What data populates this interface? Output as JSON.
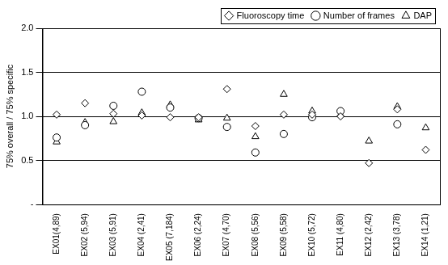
{
  "chart_data": {
    "type": "scatter",
    "y_label": "75% overall / 75% specific",
    "categories": [
      "EX01(4,89)",
      "EX02 (5,94)",
      "EX03 (5,91)",
      "EX04 (2,41)",
      "EX05 (7,184)",
      "EX06 (2,24)",
      "EX07 (4,70)",
      "EX08 (5,56)",
      "EX09 (5,58)",
      "EX10 (5,72)",
      "EX11 (4,80)",
      "EX12 (2,42)",
      "EX13 (3,78)",
      "EX14 (1,21)"
    ],
    "series": [
      {
        "name": "Fluoroscopy time",
        "color": "#000000",
        "marker": "diamond",
        "values": [
          1.02,
          1.15,
          1.03,
          1.01,
          0.99,
          0.99,
          1.31,
          0.89,
          1.02,
          1.02,
          1.0,
          0.47,
          1.08,
          0.62
        ]
      },
      {
        "name": "Number of frames",
        "color": "#000000",
        "marker": "circle",
        "values": [
          0.76,
          0.9,
          1.12,
          1.28,
          1.1,
          0.98,
          0.88,
          0.59,
          0.8,
          0.99,
          1.06,
          null,
          0.91,
          null
        ]
      },
      {
        "name": "DAP",
        "color": "#000000",
        "marker": "triangle",
        "values": [
          0.71,
          0.93,
          0.94,
          1.04,
          1.13,
          0.96,
          0.98,
          0.77,
          1.25,
          1.06,
          1.02,
          0.72,
          1.11,
          0.87
        ]
      }
    ],
    "ylim": [
      0,
      2
    ],
    "yticks": [
      {
        "value": 0,
        "label": "-"
      },
      {
        "value": 0.5,
        "label": "0.5"
      },
      {
        "value": 1,
        "label": "1.0"
      },
      {
        "value": 1.5,
        "label": "1.5"
      },
      {
        "value": 2,
        "label": "2.0"
      }
    ],
    "grid": true,
    "legend": "top-right"
  }
}
